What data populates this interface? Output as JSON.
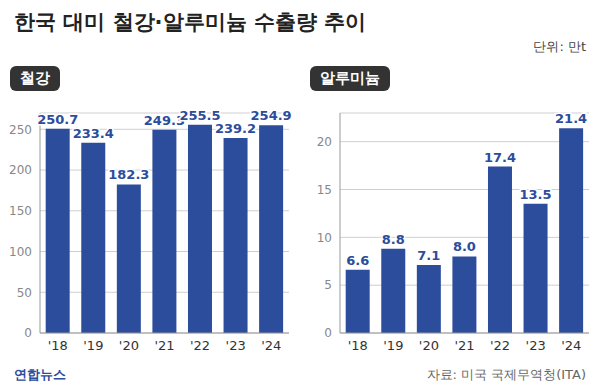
{
  "title": "한국 대미 철강·알루미늄 수출량 추이",
  "unit": "단위: 만t",
  "source": "자료: 미국 국제무역청(ITA)",
  "credit": "연합뉴스",
  "chart_data": [
    {
      "type": "bar",
      "title": "철강",
      "categories": [
        "'18",
        "'19",
        "'20",
        "'21",
        "'22",
        "'23",
        "'24"
      ],
      "values": [
        250.7,
        233.4,
        182.3,
        249.3,
        255.5,
        239.2,
        254.9
      ],
      "color": "#2c4c9c",
      "ylim": [
        0,
        270
      ],
      "yticks": [
        0,
        50,
        100,
        150,
        200,
        250
      ],
      "grid": true,
      "data_labels": true
    },
    {
      "type": "bar",
      "title": "알루미늄",
      "categories": [
        "'18",
        "'19",
        "'20",
        "'21",
        "'22",
        "'23",
        "'24"
      ],
      "values": [
        6.6,
        8.8,
        7.1,
        8,
        17.4,
        13.5,
        21.4
      ],
      "value_labels": [
        "6.6",
        "8.8",
        "7.1",
        "8.0",
        "17.4",
        "13.5",
        "21.4"
      ],
      "color": "#2c4c9c",
      "ylim": [
        0,
        23
      ],
      "yticks": [
        0,
        5,
        10,
        15,
        20
      ],
      "grid": true,
      "data_labels": true
    }
  ]
}
